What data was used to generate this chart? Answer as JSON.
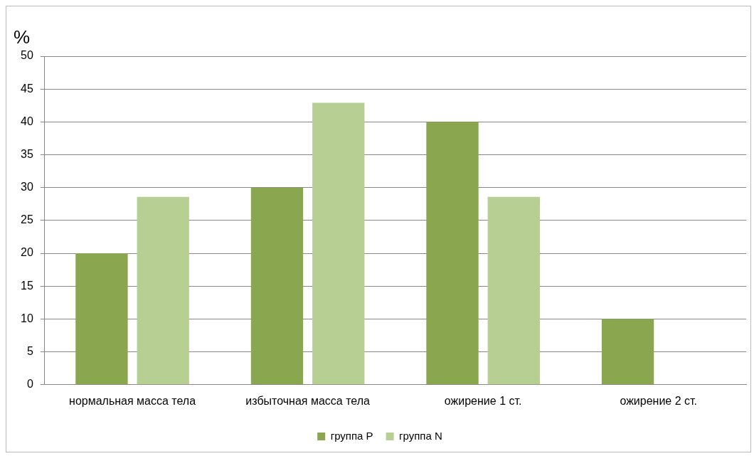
{
  "chart_data": {
    "type": "bar",
    "ylabel": "%",
    "categories": [
      "нормальная масса тела",
      "избыточная масса тела",
      "ожирение 1 ст.",
      "ожирение 2 ст."
    ],
    "series": [
      {
        "name": "группа P",
        "color": "#8aa64f",
        "values": [
          20,
          30,
          40,
          10
        ]
      },
      {
        "name": "группа N",
        "color": "#b8cf93",
        "values": [
          28.6,
          42.9,
          28.6,
          0
        ]
      }
    ],
    "ylim": [
      0,
      50
    ],
    "yticks": [
      0,
      5,
      10,
      15,
      20,
      25,
      30,
      35,
      40,
      45,
      50
    ],
    "grid": "y",
    "legend": "bottom"
  }
}
